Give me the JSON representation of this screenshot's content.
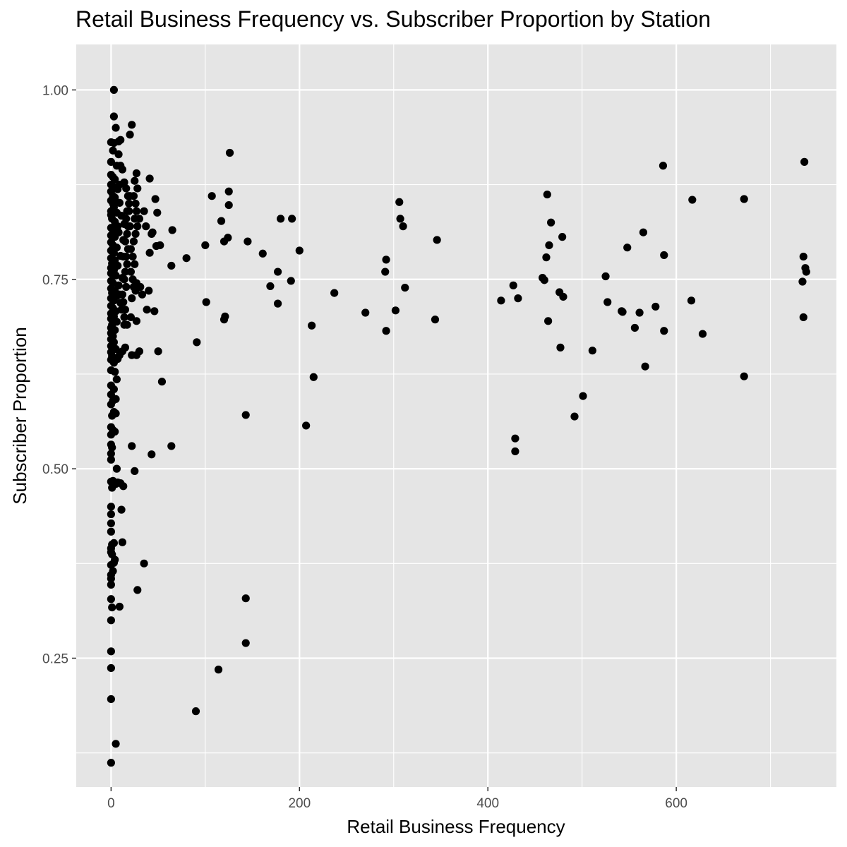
{
  "chart_data": {
    "type": "scatter",
    "title": "Retail Business Frequency vs. Subscriber Proportion by Station",
    "xlabel": "Retail Business Frequency",
    "ylabel": "Subscriber Proportion",
    "xlim": [
      -37,
      770
    ],
    "ylim": [
      0.08,
      1.06
    ],
    "x_ticks": [
      0,
      200,
      400,
      600
    ],
    "x_tick_labels": [
      "0",
      "200",
      "400",
      "600"
    ],
    "x_minor_ticks": [
      100,
      300,
      500,
      700
    ],
    "y_ticks": [
      0.25,
      0.5,
      0.75,
      1.0
    ],
    "y_tick_labels": [
      "0.25",
      "0.50",
      "0.75",
      "1.00"
    ],
    "y_minor_ticks": [
      0.125,
      0.375,
      0.625,
      0.875
    ],
    "grid": true,
    "legend": "none",
    "colors": {
      "panel": "#e5e5e5",
      "grid": "#ffffff",
      "point": "#000000",
      "tick_text": "#4d4d4d"
    },
    "series": [
      {
        "points": [
          [
            3,
            1.0
          ],
          [
            3,
            0.965
          ],
          [
            22,
            0.954
          ],
          [
            5,
            0.95
          ],
          [
            20,
            0.941
          ],
          [
            10,
            0.934
          ],
          [
            0,
            0.931
          ],
          [
            3,
            0.93
          ],
          [
            2,
            0.92
          ],
          [
            8,
            0.915
          ],
          [
            0,
            0.905
          ],
          [
            6,
            0.9
          ],
          [
            12,
            0.895
          ],
          [
            0,
            0.888
          ],
          [
            2,
            0.885
          ],
          [
            4,
            0.882
          ],
          [
            14,
            0.878
          ],
          [
            0,
            0.875
          ],
          [
            3,
            0.872
          ],
          [
            7,
            0.869
          ],
          [
            0,
            0.866
          ],
          [
            2,
            0.86
          ],
          [
            4,
            0.858
          ],
          [
            0,
            0.854
          ],
          [
            9,
            0.851
          ],
          [
            3,
            0.845
          ],
          [
            0,
            0.84
          ],
          [
            6,
            0.838
          ],
          [
            11,
            0.834
          ],
          [
            1,
            0.83
          ],
          [
            4,
            0.826
          ],
          [
            14,
            0.823
          ],
          [
            0,
            0.818
          ],
          [
            2,
            0.815
          ],
          [
            8,
            0.812
          ],
          [
            0,
            0.808
          ],
          [
            4,
            0.806
          ],
          [
            13,
            0.802
          ],
          [
            0,
            0.799
          ],
          [
            2,
            0.795
          ],
          [
            6,
            0.792
          ],
          [
            0,
            0.788
          ],
          [
            3,
            0.785
          ],
          [
            10,
            0.781
          ],
          [
            0,
            0.778
          ],
          [
            4,
            0.775
          ],
          [
            1,
            0.771
          ],
          [
            7,
            0.768
          ],
          [
            0,
            0.765
          ],
          [
            3,
            0.762
          ],
          [
            0,
            0.758
          ],
          [
            5,
            0.755
          ],
          [
            12,
            0.752
          ],
          [
            0,
            0.748
          ],
          [
            2,
            0.745
          ],
          [
            8,
            0.742
          ],
          [
            0,
            0.738
          ],
          [
            4,
            0.735
          ],
          [
            1,
            0.732
          ],
          [
            6,
            0.728
          ],
          [
            0,
            0.725
          ],
          [
            3,
            0.722
          ],
          [
            10,
            0.719
          ],
          [
            0,
            0.715
          ],
          [
            2,
            0.712
          ],
          [
            5,
            0.708
          ],
          [
            0,
            0.705
          ],
          [
            3,
            0.701
          ],
          [
            0,
            0.698
          ],
          [
            6,
            0.694
          ],
          [
            1,
            0.69
          ],
          [
            0,
            0.686
          ],
          [
            4,
            0.683
          ],
          [
            0,
            0.679
          ],
          [
            2,
            0.675
          ],
          [
            0,
            0.671
          ],
          [
            3,
            0.667
          ],
          [
            0,
            0.662
          ],
          [
            5,
            0.658
          ],
          [
            0,
            0.654
          ],
          [
            1,
            0.649
          ],
          [
            0,
            0.644
          ],
          [
            3,
            0.64
          ],
          [
            16,
            0.87
          ],
          [
            18,
            0.86
          ],
          [
            19,
            0.85
          ],
          [
            17,
            0.84
          ],
          [
            16,
            0.83
          ],
          [
            18,
            0.82
          ],
          [
            17,
            0.81
          ],
          [
            15,
            0.8
          ],
          [
            18,
            0.79
          ],
          [
            16,
            0.78
          ],
          [
            17,
            0.77
          ],
          [
            15,
            0.76
          ],
          [
            14,
            0.75
          ],
          [
            16,
            0.74
          ],
          [
            12,
            0.73
          ],
          [
            13,
            0.72
          ],
          [
            15,
            0.71
          ],
          [
            14,
            0.7
          ],
          [
            17,
            0.69
          ],
          [
            27,
            0.89
          ],
          [
            25,
            0.88
          ],
          [
            28,
            0.87
          ],
          [
            24,
            0.86
          ],
          [
            26,
            0.85
          ],
          [
            27,
            0.84
          ],
          [
            25,
            0.83
          ],
          [
            28,
            0.82
          ],
          [
            26,
            0.81
          ],
          [
            24,
            0.8
          ],
          [
            21,
            0.79
          ],
          [
            23,
            0.78
          ],
          [
            25,
            0.77
          ],
          [
            21,
            0.76
          ],
          [
            23,
            0.75
          ],
          [
            27,
            0.745
          ],
          [
            24,
            0.74
          ],
          [
            26,
            0.735
          ],
          [
            22,
            0.725
          ],
          [
            21,
            0.7
          ],
          [
            27,
            0.695
          ],
          [
            22,
            0.65
          ],
          [
            27,
            0.65
          ],
          [
            15,
            0.66
          ],
          [
            12,
            0.655
          ],
          [
            9,
            0.65
          ],
          [
            7,
            0.645
          ],
          [
            14,
            0.69
          ],
          [
            11,
            0.71
          ],
          [
            9,
            0.73
          ],
          [
            13,
            0.78
          ],
          [
            20,
            0.82
          ],
          [
            19,
            0.84
          ],
          [
            20,
            0.86
          ],
          [
            30,
            0.83
          ],
          [
            31,
            0.74
          ],
          [
            33,
            0.73
          ],
          [
            35,
            0.84
          ],
          [
            37,
            0.82
          ],
          [
            38,
            0.71
          ],
          [
            40,
            0.735
          ],
          [
            41,
            0.785
          ],
          [
            41,
            0.883
          ],
          [
            43,
            0.81
          ],
          [
            44,
            0.812
          ],
          [
            46,
            0.708
          ],
          [
            47,
            0.856
          ],
          [
            48,
            0.794
          ],
          [
            49,
            0.838
          ],
          [
            50,
            0.655
          ],
          [
            52,
            0.795
          ],
          [
            54,
            0.615
          ],
          [
            64,
            0.768
          ],
          [
            65,
            0.815
          ],
          [
            64,
            0.53
          ],
          [
            43,
            0.519
          ],
          [
            22,
            0.53
          ],
          [
            25,
            0.497
          ],
          [
            30,
            0.655
          ],
          [
            35,
            0.375
          ],
          [
            28,
            0.34
          ],
          [
            9,
            0.318
          ],
          [
            80,
            0.778
          ],
          [
            91,
            0.667
          ],
          [
            100,
            0.795
          ],
          [
            101,
            0.72
          ],
          [
            107,
            0.86
          ],
          [
            117,
            0.827
          ],
          [
            120,
            0.8
          ],
          [
            120,
            0.697
          ],
          [
            121,
            0.701
          ],
          [
            124,
            0.805
          ],
          [
            125,
            0.848
          ],
          [
            125,
            0.866
          ],
          [
            126,
            0.917
          ],
          [
            145,
            0.8
          ],
          [
            161,
            0.784
          ],
          [
            169,
            0.741
          ],
          [
            177,
            0.76
          ],
          [
            177,
            0.718
          ],
          [
            180,
            0.83
          ],
          [
            191,
            0.748
          ],
          [
            192,
            0.83
          ],
          [
            200,
            0.788
          ],
          [
            213,
            0.689
          ],
          [
            215,
            0.621
          ],
          [
            207,
            0.557
          ],
          [
            143,
            0.571
          ],
          [
            143,
            0.329
          ],
          [
            143,
            0.27
          ],
          [
            114,
            0.235
          ],
          [
            90,
            0.18
          ],
          [
            237,
            0.732
          ],
          [
            270,
            0.706
          ],
          [
            291,
            0.76
          ],
          [
            292,
            0.776
          ],
          [
            292,
            0.682
          ],
          [
            302,
            0.709
          ],
          [
            306,
            0.852
          ],
          [
            307,
            0.83
          ],
          [
            310,
            0.82
          ],
          [
            312,
            0.739
          ],
          [
            344,
            0.697
          ],
          [
            346,
            0.802
          ],
          [
            414,
            0.722
          ],
          [
            427,
            0.742
          ],
          [
            432,
            0.725
          ],
          [
            429,
            0.54
          ],
          [
            429,
            0.523
          ],
          [
            458,
            0.752
          ],
          [
            460,
            0.749
          ],
          [
            462,
            0.779
          ],
          [
            463,
            0.862
          ],
          [
            464,
            0.695
          ],
          [
            465,
            0.795
          ],
          [
            467,
            0.825
          ],
          [
            476,
            0.733
          ],
          [
            477,
            0.66
          ],
          [
            479,
            0.806
          ],
          [
            480,
            0.727
          ],
          [
            492,
            0.569
          ],
          [
            501,
            0.596
          ],
          [
            511,
            0.656
          ],
          [
            525,
            0.754
          ],
          [
            527,
            0.72
          ],
          [
            542,
            0.708
          ],
          [
            543,
            0.707
          ],
          [
            548,
            0.792
          ],
          [
            556,
            0.686
          ],
          [
            561,
            0.706
          ],
          [
            565,
            0.812
          ],
          [
            567,
            0.635
          ],
          [
            578,
            0.714
          ],
          [
            586,
            0.9
          ],
          [
            587,
            0.782
          ],
          [
            587,
            0.682
          ],
          [
            616,
            0.722
          ],
          [
            617,
            0.855
          ],
          [
            628,
            0.678
          ],
          [
            672,
            0.856
          ],
          [
            672,
            0.622
          ],
          [
            736,
            0.905
          ],
          [
            735,
            0.78
          ],
          [
            737,
            0.765
          ],
          [
            738,
            0.76
          ],
          [
            734,
            0.747
          ],
          [
            735,
            0.7
          ],
          [
            8,
            0.932
          ],
          [
            10,
            0.9
          ],
          [
            9,
            0.875
          ],
          [
            2,
            0.85
          ],
          [
            0,
            0.835
          ],
          [
            7,
            0.82
          ],
          [
            5,
            0.81
          ],
          [
            0,
            0.63
          ],
          [
            4,
            0.628
          ],
          [
            6,
            0.618
          ],
          [
            0,
            0.61
          ],
          [
            3,
            0.605
          ],
          [
            0,
            0.598
          ],
          [
            2,
            0.59
          ],
          [
            5,
            0.592
          ],
          [
            0,
            0.585
          ],
          [
            3,
            0.575
          ],
          [
            1,
            0.57
          ],
          [
            5,
            0.573
          ],
          [
            0,
            0.555
          ],
          [
            2,
            0.551
          ],
          [
            4,
            0.549
          ],
          [
            0,
            0.545
          ],
          [
            0,
            0.532
          ],
          [
            1,
            0.528
          ],
          [
            0,
            0.52
          ],
          [
            0,
            0.512
          ],
          [
            6,
            0.5
          ],
          [
            0,
            0.483
          ],
          [
            2,
            0.484
          ],
          [
            5,
            0.48
          ],
          [
            7,
            0.482
          ],
          [
            10,
            0.481
          ],
          [
            13,
            0.477
          ],
          [
            1,
            0.475
          ],
          [
            0,
            0.45
          ],
          [
            11,
            0.446
          ],
          [
            0,
            0.44
          ],
          [
            0,
            0.428
          ],
          [
            0,
            0.417
          ],
          [
            1,
            0.4
          ],
          [
            3,
            0.402
          ],
          [
            12,
            0.403
          ],
          [
            0,
            0.395
          ],
          [
            0,
            0.39
          ],
          [
            1,
            0.387
          ],
          [
            4,
            0.38
          ],
          [
            3,
            0.376
          ],
          [
            0,
            0.373
          ],
          [
            2,
            0.365
          ],
          [
            0,
            0.36
          ],
          [
            0,
            0.355
          ],
          [
            0,
            0.347
          ],
          [
            0,
            0.328
          ],
          [
            1,
            0.317
          ],
          [
            0,
            0.3
          ],
          [
            0,
            0.259
          ],
          [
            0,
            0.237
          ],
          [
            0,
            0.196
          ],
          [
            5,
            0.137
          ],
          [
            0,
            0.112
          ]
        ]
      }
    ]
  }
}
